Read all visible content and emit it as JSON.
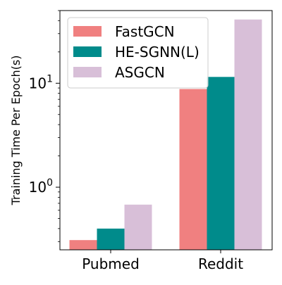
{
  "chart_data": {
    "type": "bar",
    "title": "",
    "xlabel": "",
    "ylabel": "Training Time Per Epoch(s)",
    "yscale": "log",
    "ylim": [
      0.25,
      50
    ],
    "yticks": [
      {
        "value": 1,
        "base": "10",
        "exp": "0"
      },
      {
        "value": 10,
        "base": "10",
        "exp": "1"
      }
    ],
    "categories": [
      "Pubmed",
      "Reddit"
    ],
    "series": [
      {
        "name": "FastGCN",
        "color": "#f08080",
        "values": [
          0.31,
          8.8
        ]
      },
      {
        "name": "HE-SGNN(L)",
        "color": "#008b8b",
        "values": [
          0.4,
          11.5
        ]
      },
      {
        "name": "ASGCN",
        "color": "#d8bfd8",
        "values": [
          0.68,
          41
        ]
      }
    ],
    "legend_position": "top-left",
    "grid": false
  }
}
